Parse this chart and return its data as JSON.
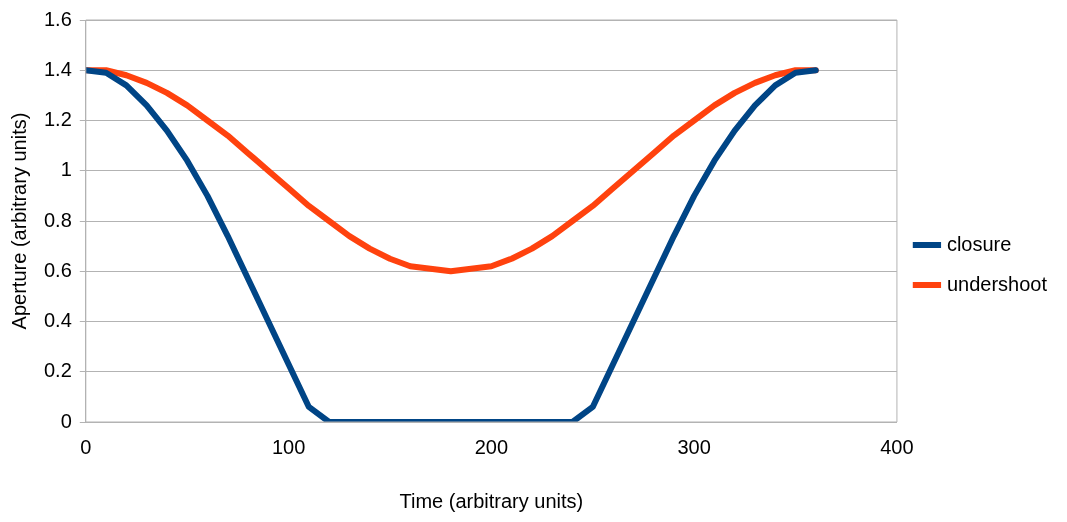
{
  "chart_data": {
    "type": "line",
    "xlabel": "Time (arbitrary units)",
    "ylabel": "Aperture (arbitrary units)",
    "x": [
      0,
      10,
      20,
      30,
      40,
      50,
      60,
      70,
      80,
      90,
      100,
      110,
      120,
      130,
      140,
      150,
      160,
      170,
      180,
      190,
      200,
      210,
      220,
      230,
      240,
      250,
      260,
      270,
      280,
      290,
      300,
      310,
      320,
      330,
      340,
      350,
      360
    ],
    "series": [
      {
        "name": "closure",
        "color": "#004586",
        "values": [
          1.4,
          1.39,
          1.34,
          1.26,
          1.16,
          1.04,
          0.9,
          0.74,
          0.57,
          0.4,
          0.23,
          0.06,
          0,
          0,
          0,
          0,
          0,
          0,
          0,
          0,
          0,
          0,
          0,
          0,
          0,
          0.06,
          0.23,
          0.4,
          0.57,
          0.74,
          0.9,
          1.04,
          1.16,
          1.26,
          1.34,
          1.39,
          1.4
        ]
      },
      {
        "name": "undershoot",
        "color": "#ff420e",
        "values": [
          1.4,
          1.4,
          1.38,
          1.35,
          1.31,
          1.26,
          1.2,
          1.14,
          1.07,
          1.0,
          0.93,
          0.86,
          0.8,
          0.74,
          0.69,
          0.65,
          0.62,
          0.61,
          0.6,
          0.61,
          0.62,
          0.65,
          0.69,
          0.74,
          0.8,
          0.86,
          0.93,
          1.0,
          1.07,
          1.14,
          1.2,
          1.26,
          1.31,
          1.35,
          1.38,
          1.4,
          1.4
        ]
      }
    ],
    "xlim": [
      0,
      400
    ],
    "xticks": [
      0,
      100,
      200,
      300,
      400
    ],
    "ylim": [
      0,
      1.6
    ],
    "yticks": [
      0,
      0.2,
      0.4,
      0.6,
      0.8,
      1,
      1.2,
      1.4,
      1.6
    ],
    "grid": "y",
    "legend": "right",
    "marker": "none",
    "line_style": "solid"
  }
}
